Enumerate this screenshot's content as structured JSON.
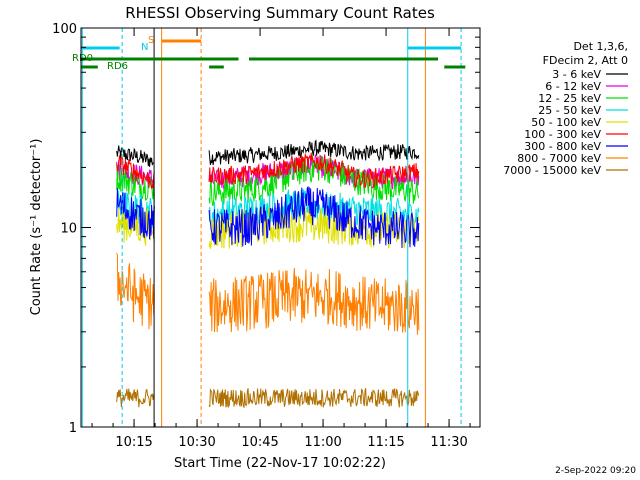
{
  "chart_data": {
    "type": "line",
    "title": "RHESSI Observing Summary Count Rates",
    "xlabel": "Start Time (22-Nov-17 10:02:22)",
    "ylabel": "Count Rate (s⁻¹ detector⁻¹)",
    "y_scale": "log",
    "ylim": [
      1,
      100
    ],
    "xlim_minutes": [
      0,
      95
    ],
    "x_ticks": [
      "10:15",
      "10:30",
      "10:45",
      "11:00",
      "11:15",
      "11:30"
    ],
    "y_ticks": [
      "1",
      "10",
      "100"
    ],
    "grid": false,
    "legend_position": "right",
    "legend_header": [
      "Det 1,3,6,",
      "FDecim 2, Att 0"
    ],
    "footer_date": "2-Sep-2022 09:20",
    "segments_minutes": [
      [
        8.5,
        17.5
      ],
      [
        30.5,
        80.5
      ]
    ],
    "series": [
      {
        "name": "3 - 6 keV",
        "color": "#000000",
        "points": [
          [
            9,
            23.5
          ],
          [
            13,
            22.8
          ],
          [
            17,
            21.5
          ],
          [
            31,
            22.5
          ],
          [
            40,
            23
          ],
          [
            50,
            24
          ],
          [
            56,
            25
          ],
          [
            60,
            24.5
          ],
          [
            66,
            23.5
          ],
          [
            72,
            23.8
          ],
          [
            80,
            24
          ]
        ]
      },
      {
        "name": "6 - 12 keV",
        "color": "#e000e0",
        "points": [
          [
            9,
            19.5
          ],
          [
            17,
            17.5
          ],
          [
            31,
            17
          ],
          [
            50,
            19.5
          ],
          [
            56,
            20.5
          ],
          [
            66,
            17.5
          ],
          [
            80,
            18
          ]
        ]
      },
      {
        "name": "12 - 25 keV",
        "color": "#00e000",
        "points": [
          [
            9,
            18
          ],
          [
            13,
            16.5
          ],
          [
            17,
            16
          ],
          [
            31,
            15
          ],
          [
            40,
            15.5
          ],
          [
            47,
            17
          ],
          [
            53,
            19.5
          ],
          [
            58,
            20
          ],
          [
            63,
            18
          ],
          [
            70,
            16
          ],
          [
            76,
            15.5
          ],
          [
            80,
            15
          ]
        ]
      },
      {
        "name": "25 - 50 keV",
        "color": "#00e0e0",
        "points": [
          [
            9,
            13
          ],
          [
            17,
            12
          ],
          [
            31,
            11.5
          ],
          [
            50,
            13
          ],
          [
            80,
            11.5
          ]
        ]
      },
      {
        "name": "50 - 100 keV",
        "color": "#e0e000",
        "points": [
          [
            9,
            10.5
          ],
          [
            17,
            10
          ],
          [
            31,
            9.5
          ],
          [
            50,
            10.5
          ],
          [
            80,
            9.5
          ]
        ]
      },
      {
        "name": "100 - 300 keV",
        "color": "#ff0000",
        "points": [
          [
            9,
            21
          ],
          [
            13,
            19
          ],
          [
            17,
            17
          ],
          [
            31,
            18
          ],
          [
            40,
            18.5
          ],
          [
            50,
            20.5
          ],
          [
            56,
            21.5
          ],
          [
            62,
            19.5
          ],
          [
            66,
            17.5
          ],
          [
            72,
            18
          ],
          [
            80,
            19
          ]
        ]
      },
      {
        "name": "300 - 800 keV",
        "color": "#0000ff",
        "points": [
          [
            9,
            13
          ],
          [
            13,
            11.5
          ],
          [
            17,
            10.5
          ],
          [
            31,
            10
          ],
          [
            40,
            10
          ],
          [
            46,
            11
          ],
          [
            53,
            13
          ],
          [
            58,
            12.5
          ],
          [
            63,
            11
          ],
          [
            70,
            10
          ],
          [
            80,
            9.5
          ]
        ]
      },
      {
        "name": "800 - 7000 keV",
        "color": "#ff8000",
        "points": [
          [
            9,
            5.5
          ],
          [
            13,
            4.5
          ],
          [
            17,
            4.2
          ],
          [
            31,
            4
          ],
          [
            40,
            4.2
          ],
          [
            50,
            4.5
          ],
          [
            60,
            4.5
          ],
          [
            70,
            4
          ],
          [
            80,
            4
          ]
        ]
      },
      {
        "name": "7000 - 15000 keV",
        "color": "#b07000",
        "points": [
          [
            9,
            1.4
          ],
          [
            80,
            1.4
          ]
        ]
      }
    ],
    "annotations": [
      {
        "label": "RD0",
        "color": "#008000"
      },
      {
        "label": "RD6",
        "color": "#008000"
      },
      {
        "label": "N",
        "color": "#00ccee"
      },
      {
        "label": "S",
        "color": "#ff8000"
      }
    ]
  }
}
